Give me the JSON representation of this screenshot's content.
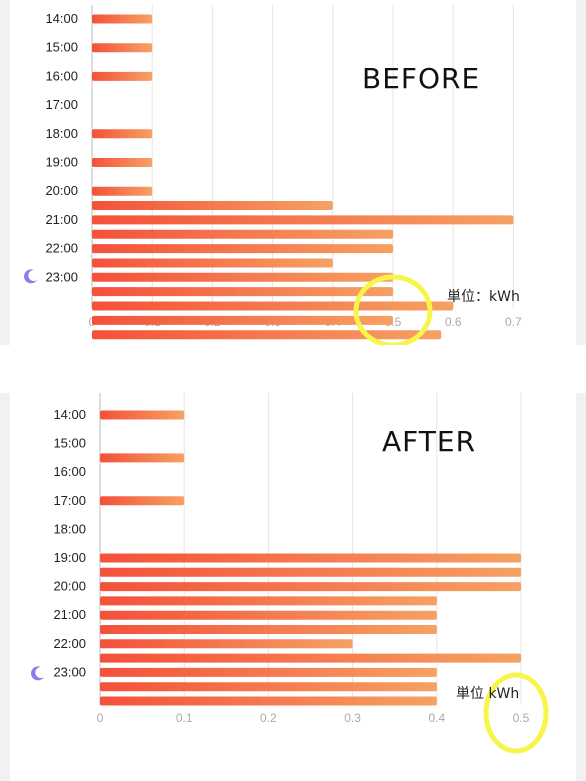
{
  "panels": {
    "before": {
      "label": "BEFORE",
      "unit_label": "単位：kWh"
    },
    "after": {
      "label": "AFTER",
      "unit_label": "単位  kWh"
    }
  },
  "colors": {
    "bar_start": "#f4513a",
    "bar_end": "#f6a163",
    "highlight": "#f7f54a",
    "grid": "#e4e4e4",
    "moon": "#8b7ff0"
  },
  "icons": {
    "night": "moon-icon",
    "highlight": "yellow-circle"
  },
  "chart_data": [
    {
      "type": "bar",
      "orientation": "horizontal",
      "title": "BEFORE",
      "unit": "単位：kWh",
      "time_labels": [
        "14:00",
        "15:00",
        "16:00",
        "17:00",
        "18:00",
        "19:00",
        "20:00",
        "21:00",
        "22:00",
        "23:00"
      ],
      "x_ticks": [
        "0",
        "0.1",
        "0.2",
        "0.3",
        "0.4",
        "0.5",
        "0.6",
        "0.7"
      ],
      "xlim": [
        0,
        0.7
      ],
      "values": [
        0.1,
        0,
        0.1,
        0,
        0.1,
        0,
        0,
        0,
        0.1,
        0,
        0.1,
        0,
        0.1,
        0.4,
        0.7,
        0.5,
        0.5,
        0.4,
        0.5,
        0.5,
        0.6,
        0.5,
        0.58
      ],
      "highlight_tick": "0.5",
      "grid": true
    },
    {
      "type": "bar",
      "orientation": "horizontal",
      "title": "AFTER",
      "unit": "単位  kWh",
      "time_labels": [
        "14:00",
        "15:00",
        "16:00",
        "17:00",
        "18:00",
        "19:00",
        "20:00",
        "21:00",
        "22:00",
        "23:00"
      ],
      "x_ticks": [
        "0",
        "0.1",
        "0.2",
        "0.3",
        "0.4",
        "0.5"
      ],
      "xlim": [
        0,
        0.5
      ],
      "values": [
        0.1,
        0,
        0,
        0.1,
        0,
        0,
        0.1,
        0,
        0,
        0,
        0.5,
        0.5,
        0.5,
        0.4,
        0.4,
        0.4,
        0.3,
        0.5,
        0.4,
        0.4,
        0.4
      ],
      "highlight_tick": "0.5",
      "grid": true
    }
  ]
}
